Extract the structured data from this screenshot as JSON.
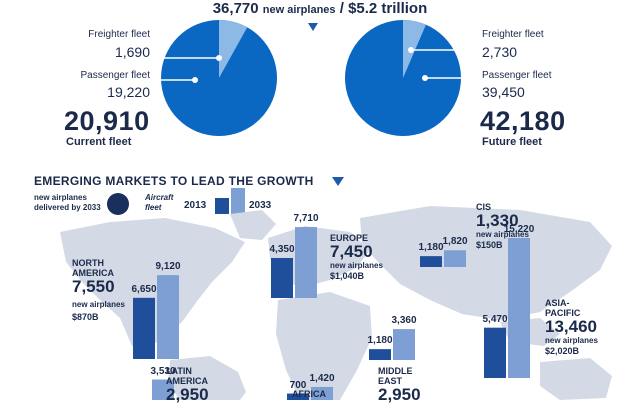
{
  "header": {
    "airplanes": "36,770",
    "airplanes_label": "new airplanes",
    "separator": "/",
    "value": "$5.2 trillion"
  },
  "current_fleet": {
    "freighter_label": "Freighter fleet",
    "freighter_value": "1,690",
    "passenger_label": "Passenger fleet",
    "passenger_value": "19,220",
    "total": "20,910",
    "caption": "Current fleet"
  },
  "future_fleet": {
    "freighter_label": "Freighter fleet",
    "freighter_value": "2,730",
    "passenger_label": "Passenger fleet",
    "passenger_value": "39,450",
    "total": "42,180",
    "caption": "Future fleet"
  },
  "section_title": "EMERGING MARKETS TO LEAD THE GROWTH",
  "legend": {
    "new_airplanes_line1": "new airplanes",
    "new_airplanes_line2": "delivered by 2033",
    "aircraft_fleet_line1": "Aircraft",
    "aircraft_fleet_line2": "fleet",
    "year1": "2013",
    "year2": "2033"
  },
  "colors": {
    "pie_main": "#0a67c2",
    "pie_slice": "#8cb9e6",
    "bar_2013": "#1f4f9a",
    "bar_2033": "#7d9fd3",
    "map": "#d3dae6",
    "text": "#1b2a4a"
  },
  "chart_data": [
    {
      "type": "pie",
      "title": "Current fleet",
      "labels": [
        "Freighter fleet",
        "Passenger fleet"
      ],
      "values": [
        1690,
        19220
      ],
      "total": 20910
    },
    {
      "type": "pie",
      "title": "Future fleet",
      "labels": [
        "Freighter fleet",
        "Passenger fleet"
      ],
      "values": [
        2730,
        39450
      ],
      "total": 42180
    },
    {
      "type": "bar",
      "categories": [
        "North America",
        "Europe",
        "CIS",
        "Asia-Pacific",
        "Middle East",
        "Africa",
        "Latin America"
      ],
      "series": [
        {
          "name": "2013",
          "values": [
            6650,
            4350,
            1180,
            5470,
            1180,
            700,
            null
          ]
        },
        {
          "name": "2033",
          "values": [
            9120,
            7710,
            1820,
            15220,
            3360,
            1420,
            3530
          ]
        }
      ],
      "new_airplanes": [
        7550,
        7450,
        1330,
        13460,
        2950,
        null,
        2950
      ]
    }
  ],
  "regions": [
    {
      "key": "na",
      "name_lines": [
        "NORTH",
        "AMERICA"
      ],
      "new": "7,550",
      "new_label": "new airplanes",
      "value": "$870B",
      "v2013": "6,650",
      "v2033": "9,120"
    },
    {
      "key": "eu",
      "name_lines": [
        "EUROPE"
      ],
      "new": "7,450",
      "new_label": "new airplanes",
      "value": "$1,040B",
      "v2013": "4,350",
      "v2033": "7,710"
    },
    {
      "key": "cis",
      "name_lines": [
        "CIS"
      ],
      "new": "1,330",
      "new_label": "new airplanes",
      "value": "$150B",
      "v2013": "1,180",
      "v2033": "1,820"
    },
    {
      "key": "ap",
      "name_lines": [
        "ASIA-",
        "PACIFIC"
      ],
      "new": "13,460",
      "new_label": "new airplanes",
      "value": "$2,020B",
      "v2013": "5,470",
      "v2033": "15,220"
    },
    {
      "key": "me",
      "name_lines": [
        "MIDDLE",
        "EAST"
      ],
      "new": "2,950",
      "new_label": "",
      "value": "",
      "v2013": "1,180",
      "v2033": "3,360"
    },
    {
      "key": "af",
      "name_lines": [
        "AFRICA"
      ],
      "new": "",
      "new_label": "",
      "value": "",
      "v2013": "700",
      "v2033": "1,420"
    },
    {
      "key": "la",
      "name_lines": [
        "LATIN",
        "AMERICA"
      ],
      "new": "2,950",
      "new_label": "",
      "value": "",
      "v2013": "",
      "v2033": "3,530"
    }
  ]
}
